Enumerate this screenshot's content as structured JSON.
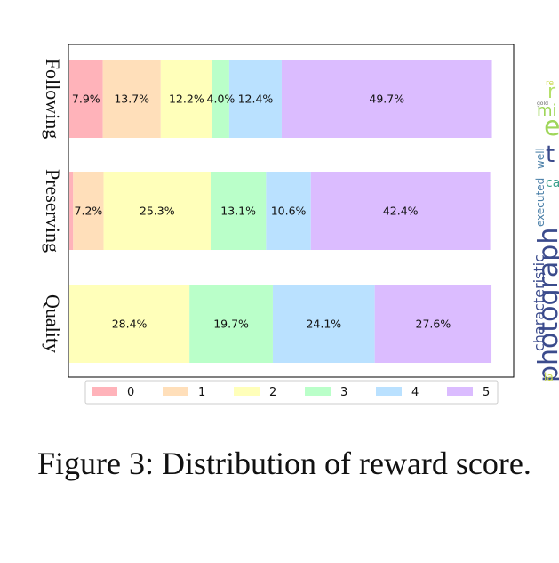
{
  "chart_data": {
    "type": "bar",
    "orientation": "horizontal",
    "stacked": true,
    "categories": [
      "Following",
      "Preserving",
      "Quality"
    ],
    "series": [
      {
        "name": "0",
        "color": "#ffb3ba",
        "values": [
          7.9,
          0.9,
          0.0
        ]
      },
      {
        "name": "1",
        "color": "#ffdfba",
        "values": [
          13.7,
          7.2,
          0.0
        ]
      },
      {
        "name": "2",
        "color": "#ffffba",
        "values": [
          12.2,
          25.3,
          28.4
        ]
      },
      {
        "name": "3",
        "color": "#baffc9",
        "values": [
          4.0,
          13.1,
          19.7
        ]
      },
      {
        "name": "4",
        "color": "#bae1ff",
        "values": [
          12.4,
          10.6,
          24.1
        ]
      },
      {
        "name": "5",
        "color": "#dbbcff",
        "values": [
          49.7,
          42.4,
          27.6
        ]
      }
    ],
    "data_labels": [
      [
        "7.9%",
        "13.7%",
        "12.2%",
        "4.0%",
        "12.4%",
        "49.7%"
      ],
      [
        "",
        "7.2%",
        "25.3%",
        "13.1%",
        "10.6%",
        "42.4%"
      ],
      [
        "",
        "",
        "28.4%",
        "19.7%",
        "24.1%",
        "27.6%"
      ]
    ],
    "xlim": [
      0,
      100
    ],
    "grid": false,
    "legend_position": "bottom"
  },
  "caption": "Figure 3: Distribution of reward score.",
  "word_cloud": {
    "words": [
      {
        "text": "photograph",
        "color": "#3b4b8c"
      },
      {
        "text": "characteristic",
        "color": "#3b4b8c"
      },
      {
        "text": "executed",
        "color": "#4a7fa8"
      },
      {
        "text": "well",
        "color": "#4a7fa8"
      },
      {
        "text": "t",
        "color": "#3b4b8c"
      },
      {
        "text": "e",
        "color": "#9fd65a"
      },
      {
        "text": "mi",
        "color": "#9fd65a"
      },
      {
        "text": "r",
        "color": "#b5e06a"
      },
      {
        "text": "ca",
        "color": "#3ba08c"
      },
      {
        "text": "la",
        "color": "#c8d84a"
      },
      {
        "text": "re",
        "color": "#c8d84a"
      },
      {
        "text": "gold",
        "color": "#6a6a6a"
      }
    ]
  }
}
